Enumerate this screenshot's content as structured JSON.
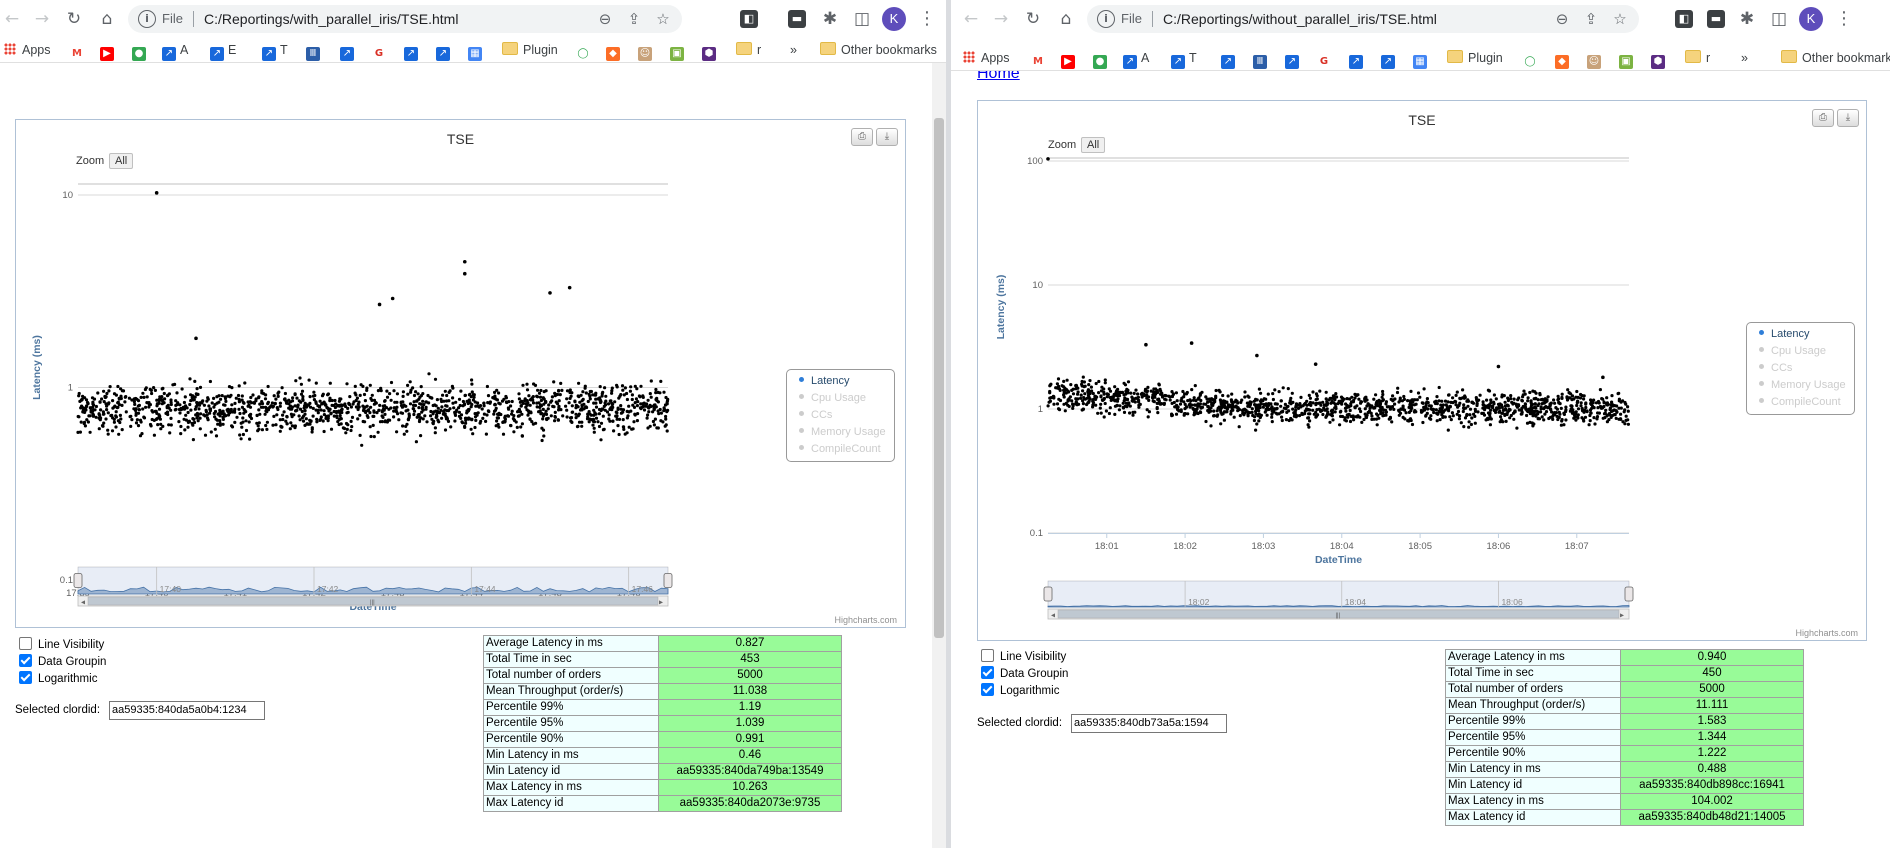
{
  "left": {
    "url": "C:/Reportings/with_parallel_iris/TSE.html",
    "file_label": "File",
    "chart": {
      "title": "TSE",
      "zoom_label": "Zoom",
      "zoom_all": "All",
      "ylabel": "Latency (ms)",
      "xlabel": "DateTime",
      "y_ticks": [
        "10",
        "1",
        "0.1"
      ],
      "x_ticks": [
        "17:39",
        "17:40",
        "17:41",
        "17:42",
        "17:43",
        "17:44",
        "17:45",
        "17:46"
      ],
      "navigator_ticks": [
        "17:40",
        "17:42",
        "17:44",
        "17:46"
      ],
      "credits": "Highcharts.com"
    },
    "stats": [
      {
        "label": "Average Latency in ms",
        "value": "0.827"
      },
      {
        "label": "Total Time in sec",
        "value": "453"
      },
      {
        "label": "Total number of orders",
        "value": "5000"
      },
      {
        "label": "Mean Throughput (order/s)",
        "value": "11.038"
      },
      {
        "label": "Percentile 99%",
        "value": "1.19"
      },
      {
        "label": "Percentile 95%",
        "value": "1.039"
      },
      {
        "label": "Percentile 90%",
        "value": "0.991"
      },
      {
        "label": "Min Latency in ms",
        "value": "0.46"
      },
      {
        "label": "Min Latency id",
        "value": "aa59335:840da749ba:13549"
      },
      {
        "label": "Max Latency in ms",
        "value": "10.263"
      },
      {
        "label": "Max Latency id",
        "value": "aa59335:840da2073e:9735"
      }
    ],
    "selected_clordid": "aa59335:840da5a0b4:1234"
  },
  "right": {
    "url": "C:/Reportings/without_parallel_iris/TSE.html",
    "file_label": "File",
    "home_link": "Home",
    "chart": {
      "title": "TSE",
      "zoom_label": "Zoom",
      "zoom_all": "All",
      "ylabel": "Latency (ms)",
      "xlabel": "DateTime",
      "y_ticks": [
        "100",
        "10",
        "1",
        "0.1"
      ],
      "x_ticks": [
        "18:01",
        "18:02",
        "18:03",
        "18:04",
        "18:05",
        "18:06",
        "18:07"
      ],
      "navigator_ticks": [
        "18:02",
        "18:04",
        "18:06"
      ],
      "credits": "Highcharts.com"
    },
    "stats": [
      {
        "label": "Average Latency in ms",
        "value": "0.940"
      },
      {
        "label": "Total Time in sec",
        "value": "450"
      },
      {
        "label": "Total number of orders",
        "value": "5000"
      },
      {
        "label": "Mean Throughput (order/s)",
        "value": "11.111"
      },
      {
        "label": "Percentile 99%",
        "value": "1.583"
      },
      {
        "label": "Percentile 95%",
        "value": "1.344"
      },
      {
        "label": "Percentile 90%",
        "value": "1.222"
      },
      {
        "label": "Min Latency in ms",
        "value": "0.488"
      },
      {
        "label": "Min Latency id",
        "value": "aa59335:840db898cc:16941"
      },
      {
        "label": "Max Latency in ms",
        "value": "104.002"
      },
      {
        "label": "Max Latency id",
        "value": "aa59335:840db48d21:14005"
      }
    ],
    "selected_clordid": "aa59335:840db73a5a:1594"
  },
  "legend_items": [
    {
      "label": "Latency",
      "active": true
    },
    {
      "label": "Cpu Usage",
      "active": false
    },
    {
      "label": "CCs",
      "active": false
    },
    {
      "label": "Memory Usage",
      "active": false
    },
    {
      "label": "CompileCount",
      "active": false
    }
  ],
  "controls": {
    "line_visibility": "Line Visibility",
    "data_grouping": "Data Groupin",
    "logarithmic": "Logarithmic",
    "selected_label": "Selected clordid:"
  },
  "bookmarks": {
    "apps": "Apps",
    "a": "A",
    "e": "E",
    "t": "T",
    "plugin": "Plugin",
    "r": "r",
    "more": "»",
    "other": "Other bookmarks"
  },
  "profile_initial": "K",
  "colors": {
    "accent": "#2f7ed8",
    "stat_value_bg": "#98fb98",
    "stat_label_bg": "#f0ffff",
    "point": "#000000"
  },
  "chart_data": [
    {
      "type": "scatter",
      "title": "TSE",
      "xlabel": "DateTime",
      "ylabel": "Latency (ms)",
      "y_scale": "log",
      "ylim": [
        0.1,
        10
      ],
      "xlim": [
        "17:39",
        "17:46"
      ],
      "series": [
        {
          "name": "Latency",
          "n_points": 5000,
          "typical_range": [
            0.5,
            1.2
          ],
          "min": 0.46,
          "max": 10.263
        }
      ],
      "outliers": [
        {
          "x": "17:40",
          "y": 10.263
        },
        {
          "x": "17:43:55",
          "y": 4.5
        },
        {
          "x": "17:43:55",
          "y": 3.9
        },
        {
          "x": "17:45:15",
          "y": 3.3
        },
        {
          "x": "17:45:00",
          "y": 3.1
        },
        {
          "x": "17:43:00",
          "y": 2.9
        },
        {
          "x": "17:42:50",
          "y": 2.7
        },
        {
          "x": "17:40:30",
          "y": 1.8
        }
      ],
      "grid": true,
      "legend_position": "right"
    },
    {
      "type": "scatter",
      "title": "TSE",
      "xlabel": "DateTime",
      "ylabel": "Latency (ms)",
      "y_scale": "log",
      "ylim": [
        0.1,
        100
      ],
      "xlim": [
        "18:00:15",
        "18:07:40"
      ],
      "series": [
        {
          "name": "Latency",
          "n_points": 5000,
          "typical_range": [
            0.65,
            1.6
          ],
          "min": 0.488,
          "max": 104.002
        }
      ],
      "outliers": [
        {
          "x": "18:00:15",
          "y": 104.002
        },
        {
          "x": "18:01:30",
          "y": 3.3
        },
        {
          "x": "18:02:05",
          "y": 3.4
        },
        {
          "x": "18:02:55",
          "y": 2.7
        },
        {
          "x": "18:03:40",
          "y": 2.3
        },
        {
          "x": "18:06:00",
          "y": 2.2
        },
        {
          "x": "18:07:20",
          "y": 1.8
        }
      ],
      "grid": true,
      "legend_position": "right"
    }
  ]
}
